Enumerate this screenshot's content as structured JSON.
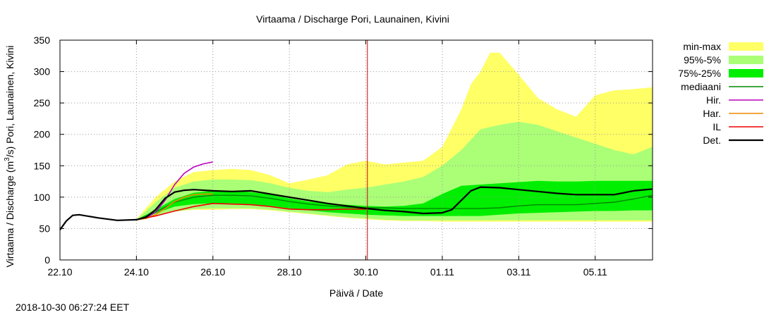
{
  "chart_data": {
    "type": "area",
    "title": "Virtaama / Discharge  Pori, Launainen, Kivini",
    "xlabel": "Päivä / Date",
    "ylabel_parts": [
      "Virtaama / Discharge (m",
      "3",
      "/s)  Pori, Launainen, Kivini"
    ],
    "x_ticks": [
      "22.10",
      "24.10",
      "26.10",
      "28.10",
      "30.10",
      "01.11",
      "03.11",
      "05.11"
    ],
    "xlim": [
      "22.10 00:00",
      "06.11 12:00"
    ],
    "ylim": [
      0,
      350
    ],
    "y_ticks": [
      0,
      50,
      100,
      150,
      200,
      250,
      300,
      350
    ],
    "grid": true,
    "legend_placement": "right",
    "current_time_marker": "30.10 01:00",
    "legend": [
      {
        "label": "min-max",
        "kind": "band",
        "color": "#ffff66"
      },
      {
        "label": "95%-5%",
        "kind": "band",
        "color": "#aaff77"
      },
      {
        "label": "75%-25%",
        "kind": "band",
        "color": "#00ee00"
      },
      {
        "label": "mediaani",
        "kind": "line",
        "color": "#008800"
      },
      {
        "label": "Hir.",
        "kind": "line",
        "color": "#bb00bb"
      },
      {
        "label": "Har.",
        "kind": "line",
        "color": "#ee8800"
      },
      {
        "label": "IL",
        "kind": "line",
        "color": "#ee0000"
      },
      {
        "label": "Det.",
        "kind": "line",
        "color": "#000000"
      }
    ],
    "bands": {
      "min-max": {
        "x": [
          "24.10 00:00",
          "24.10 12:00",
          "25.10 00:00",
          "25.10 12:00",
          "26.10 00:00",
          "26.10 12:00",
          "27.10 00:00",
          "27.10 12:00",
          "28.10 00:00",
          "28.10 12:00",
          "29.10 00:00",
          "29.10 12:00",
          "30.10 00:00",
          "30.10 12:00",
          "31.10 00:00",
          "31.10 12:00",
          "01.11 00:00",
          "01.11 12:00",
          "01.11 18:00",
          "02.11 00:00",
          "02.11 06:00",
          "02.11 12:00",
          "03.11 00:00",
          "03.11 12:00",
          "04.11 00:00",
          "04.11 12:00",
          "05.11 00:00",
          "05.11 12:00",
          "06.11 00:00",
          "06.11 12:00"
        ],
        "upper": [
          65,
          100,
          125,
          140,
          143,
          145,
          143,
          135,
          122,
          128,
          135,
          152,
          158,
          152,
          155,
          158,
          180,
          240,
          280,
          300,
          330,
          330,
          295,
          258,
          240,
          228,
          262,
          270,
          272,
          275
        ],
        "lower": [
          64,
          70,
          77,
          80,
          80,
          81,
          81,
          79,
          76,
          73,
          70,
          67,
          65,
          63,
          62,
          62,
          61,
          61,
          61,
          61,
          61,
          61,
          61,
          61,
          61,
          61,
          61,
          61,
          61,
          61
        ]
      },
      "95%-5%": {
        "x": [
          "24.10 00:00",
          "24.10 12:00",
          "25.10 00:00",
          "25.10 12:00",
          "26.10 00:00",
          "26.10 12:00",
          "27.10 00:00",
          "27.10 12:00",
          "28.10 00:00",
          "28.10 12:00",
          "29.10 00:00",
          "29.10 12:00",
          "30.10 00:00",
          "30.10 12:00",
          "31.10 00:00",
          "31.10 12:00",
          "01.11 00:00",
          "01.11 12:00",
          "02.11 00:00",
          "02.11 12:00",
          "03.11 00:00",
          "03.11 12:00",
          "04.11 00:00",
          "04.11 12:00",
          "05.11 00:00",
          "05.11 12:00",
          "06.11 00:00",
          "06.11 12:00"
        ],
        "upper": [
          64,
          92,
          115,
          125,
          128,
          128,
          127,
          122,
          115,
          110,
          108,
          112,
          115,
          120,
          125,
          132,
          150,
          175,
          208,
          215,
          220,
          215,
          205,
          195,
          185,
          175,
          168,
          180
        ],
        "lower": [
          64,
          70,
          77,
          81,
          82,
          82,
          82,
          80,
          77,
          74,
          71,
          68,
          66,
          64,
          63,
          63,
          63,
          63,
          63,
          63,
          63,
          63,
          63,
          63,
          63,
          63,
          63,
          63
        ]
      },
      "75%-25%": {
        "x": [
          "24.10 00:00",
          "24.10 12:00",
          "25.10 00:00",
          "25.10 12:00",
          "26.10 00:00",
          "26.10 12:00",
          "27.10 00:00",
          "27.10 12:00",
          "28.10 00:00",
          "28.10 12:00",
          "29.10 00:00",
          "29.10 12:00",
          "30.10 00:00",
          "30.10 12:00",
          "31.10 00:00",
          "31.10 12:00",
          "01.11 00:00",
          "01.11 12:00",
          "02.11 00:00",
          "02.11 12:00",
          "03.11 00:00",
          "03.11 12:00",
          "04.11 00:00",
          "04.11 12:00",
          "05.11 00:00",
          "05.11 12:00",
          "06.11 00:00",
          "06.11 12:00"
        ],
        "upper": [
          64,
          80,
          97,
          107,
          110,
          110,
          108,
          104,
          98,
          93,
          90,
          88,
          86,
          85,
          86,
          90,
          105,
          118,
          120,
          122,
          124,
          126,
          125,
          125,
          126,
          126,
          126,
          126
        ],
        "lower": [
          64,
          74,
          85,
          89,
          90,
          90,
          89,
          86,
          82,
          79,
          76,
          74,
          72,
          71,
          70,
          70,
          70,
          70,
          70,
          72,
          74,
          75,
          76,
          77,
          78,
          78,
          79,
          79
        ]
      }
    },
    "series": [
      {
        "name": "mediaani",
        "color": "#008800",
        "x": [
          "24.10 00:00",
          "24.10 12:00",
          "25.10 00:00",
          "25.10 12:00",
          "26.10 00:00",
          "26.10 12:00",
          "27.10 00:00",
          "27.10 12:00",
          "28.10 00:00",
          "28.10 12:00",
          "29.10 00:00",
          "29.10 12:00",
          "30.10 00:00",
          "30.10 12:00",
          "31.10 00:00",
          "31.10 12:00",
          "01.11 00:00",
          "01.11 12:00",
          "02.11 00:00",
          "02.11 12:00",
          "03.11 00:00",
          "03.11 12:00",
          "04.11 00:00",
          "04.11 12:00",
          "05.11 00:00",
          "05.11 12:00",
          "06.11 00:00",
          "06.11 12:00"
        ],
        "y": [
          64,
          76,
          92,
          100,
          103,
          103,
          102,
          98,
          93,
          89,
          86,
          84,
          83,
          83,
          82,
          82,
          82,
          82,
          82,
          83,
          86,
          88,
          88,
          88,
          90,
          92,
          97,
          103
        ]
      },
      {
        "name": "Hir.",
        "color": "#bb00bb",
        "x": [
          "24.10 00:00",
          "24.10 06:00",
          "24.10 12:00",
          "24.10 18:00",
          "25.10 00:00",
          "25.10 06:00",
          "25.10 12:00",
          "25.10 18:00",
          "26.10 00:00"
        ],
        "y": [
          64,
          67,
          76,
          95,
          120,
          138,
          148,
          153,
          156
        ]
      },
      {
        "name": "Har.",
        "color": "#ee8800",
        "x": [
          "24.10 00:00",
          "24.10 06:00",
          "24.10 12:00",
          "24.10 18:00",
          "25.10 00:00",
          "25.10 06:00",
          "25.10 12:00",
          "25.10 18:00",
          "26.10 00:00"
        ],
        "y": [
          64,
          66,
          72,
          82,
          93,
          100,
          104,
          105,
          105
        ]
      },
      {
        "name": "IL",
        "color": "#ee0000",
        "x": [
          "24.10 00:00",
          "24.10 12:00",
          "25.10 00:00",
          "25.10 12:00",
          "26.10 00:00",
          "26.10 12:00",
          "27.10 00:00",
          "27.10 12:00",
          "28.10 00:00",
          "28.10 12:00",
          "29.10 00:00",
          "29.10 12:00",
          "30.10 00:00"
        ],
        "y": [
          64,
          70,
          78,
          85,
          90,
          89,
          88,
          85,
          81,
          80,
          80,
          81,
          81
        ]
      },
      {
        "name": "Det.",
        "color": "#000000",
        "x": [
          "22.10 00:00",
          "22.10 04:00",
          "22.10 08:00",
          "22.10 12:00",
          "23.10 00:00",
          "23.10 12:00",
          "24.10 00:00",
          "24.10 06:00",
          "24.10 12:00",
          "24.10 18:00",
          "25.10 00:00",
          "25.10 06:00",
          "25.10 12:00",
          "26.10 00:00",
          "26.10 12:00",
          "27.10 00:00",
          "27.10 12:00",
          "28.10 00:00",
          "28.10 12:00",
          "29.10 00:00",
          "29.10 12:00",
          "30.10 00:00",
          "30.10 12:00",
          "31.10 00:00",
          "31.10 12:00",
          "01.11 00:00",
          "01.11 06:00",
          "01.11 12:00",
          "01.11 18:00",
          "02.11 00:00",
          "02.11 12:00",
          "03.11 00:00",
          "03.11 12:00",
          "04.11 00:00",
          "04.11 12:00",
          "05.11 00:00",
          "05.11 12:00",
          "06.11 00:00",
          "06.11 12:00"
        ],
        "y": [
          48,
          62,
          71,
          72,
          67,
          63,
          64,
          68,
          80,
          98,
          108,
          111,
          112,
          110,
          109,
          110,
          105,
          100,
          95,
          90,
          86,
          82,
          79,
          77,
          74,
          75,
          80,
          95,
          110,
          116,
          115,
          112,
          109,
          106,
          104,
          104,
          104,
          110,
          113
        ]
      }
    ]
  },
  "footer": {
    "timestamp": "2018-10-30 06:27:24 EET"
  }
}
